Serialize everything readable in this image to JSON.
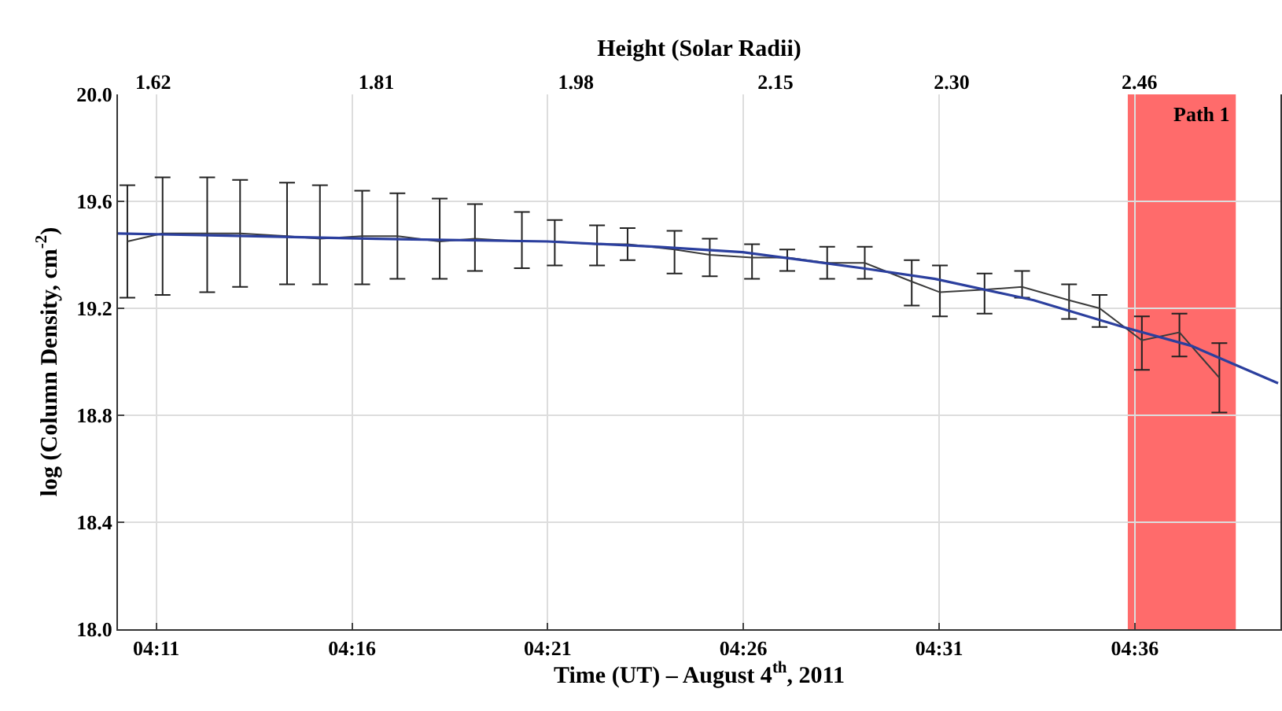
{
  "chart_data": {
    "type": "line",
    "xlabel": "Time (UT) – August 4$^{th}$, 2011",
    "ylabel": "log (Column Density, cm$^{-2}$)",
    "x2label": "Height (Solar Radii)",
    "xlim": [
      4.167,
      4.662
    ],
    "xticks": [
      {
        "value": 4.1833,
        "label": "04:11"
      },
      {
        "value": 4.2667,
        "label": "04:16"
      },
      {
        "value": 4.35,
        "label": "04:21"
      },
      {
        "value": 4.4333,
        "label": "04:26"
      },
      {
        "value": 4.5167,
        "label": "04:31"
      },
      {
        "value": 4.6,
        "label": "04:36"
      }
    ],
    "x2lim": [
      1.59,
      2.58
    ],
    "x2ticks": [
      1.62,
      1.81,
      1.98,
      2.15,
      {
        "value": 2.3,
        "label": "2.30"
      },
      2.46
    ],
    "ylim": [
      18.0,
      20.0
    ],
    "yticks": [
      {
        "value": 18,
        "label": "18.0"
      },
      18.4,
      18.8,
      19.2,
      19.6,
      {
        "value": 20,
        "label": "20.0"
      }
    ],
    "grid": true,
    "marker": "none",
    "series": [
      {
        "color": "#3a3a3a",
        "x": [
          4.171,
          4.186,
          4.205,
          4.219,
          4.239,
          4.253,
          4.271,
          4.286,
          4.304,
          4.319,
          4.339,
          4.353,
          4.371,
          4.384,
          4.404,
          4.419,
          4.437,
          4.452,
          4.469,
          4.485,
          4.505,
          4.517,
          4.536,
          4.552,
          4.572,
          4.585,
          4.603,
          4.619,
          4.636
        ],
        "values": [
          19.45,
          19.48,
          19.48,
          19.48,
          19.47,
          19.46,
          19.47,
          19.47,
          19.45,
          19.46,
          19.45,
          19.45,
          19.44,
          19.44,
          19.42,
          19.4,
          19.39,
          19.39,
          19.37,
          19.37,
          19.3,
          19.26,
          19.27,
          19.28,
          19.23,
          19.2,
          19.08,
          19.11,
          18.94
        ],
        "errors": [
          [
            19.24,
            19.66
          ],
          [
            19.25,
            19.69
          ],
          [
            19.26,
            19.69
          ],
          [
            19.28,
            19.68
          ],
          [
            19.29,
            19.67
          ],
          [
            19.29,
            19.66
          ],
          [
            19.29,
            19.64
          ],
          [
            19.31,
            19.63
          ],
          [
            19.31,
            19.61
          ],
          [
            19.34,
            19.59
          ],
          [
            19.35,
            19.56
          ],
          [
            19.36,
            19.53
          ],
          [
            19.36,
            19.51
          ],
          [
            19.38,
            19.5
          ],
          [
            19.33,
            19.49
          ],
          [
            19.32,
            19.46
          ],
          [
            19.31,
            19.44
          ],
          [
            19.34,
            19.42
          ],
          [
            19.31,
            19.43
          ],
          [
            19.31,
            19.43
          ],
          [
            19.21,
            19.38
          ],
          [
            19.17,
            19.36
          ],
          [
            19.18,
            19.33
          ],
          [
            19.24,
            19.34
          ],
          [
            19.16,
            19.29
          ],
          [
            19.13,
            19.25
          ],
          [
            18.97,
            19.17
          ],
          [
            19.02,
            19.18
          ],
          [
            18.81,
            19.07
          ]
        ]
      },
      {
        "color": "#2b3f9e",
        "x": [
          4.167,
          4.277,
          4.35,
          4.397,
          4.433,
          4.484,
          4.515,
          4.557,
          4.595,
          4.624,
          4.661
        ],
        "values": [
          19.48,
          19.46,
          19.45,
          19.43,
          19.41,
          19.35,
          19.31,
          19.23,
          19.13,
          19.06,
          18.92
        ]
      }
    ],
    "bands": [
      {
        "axis": "x",
        "from": 4.597,
        "to": 4.643,
        "label": "Path 1",
        "color": "#ff6b6b"
      }
    ]
  }
}
